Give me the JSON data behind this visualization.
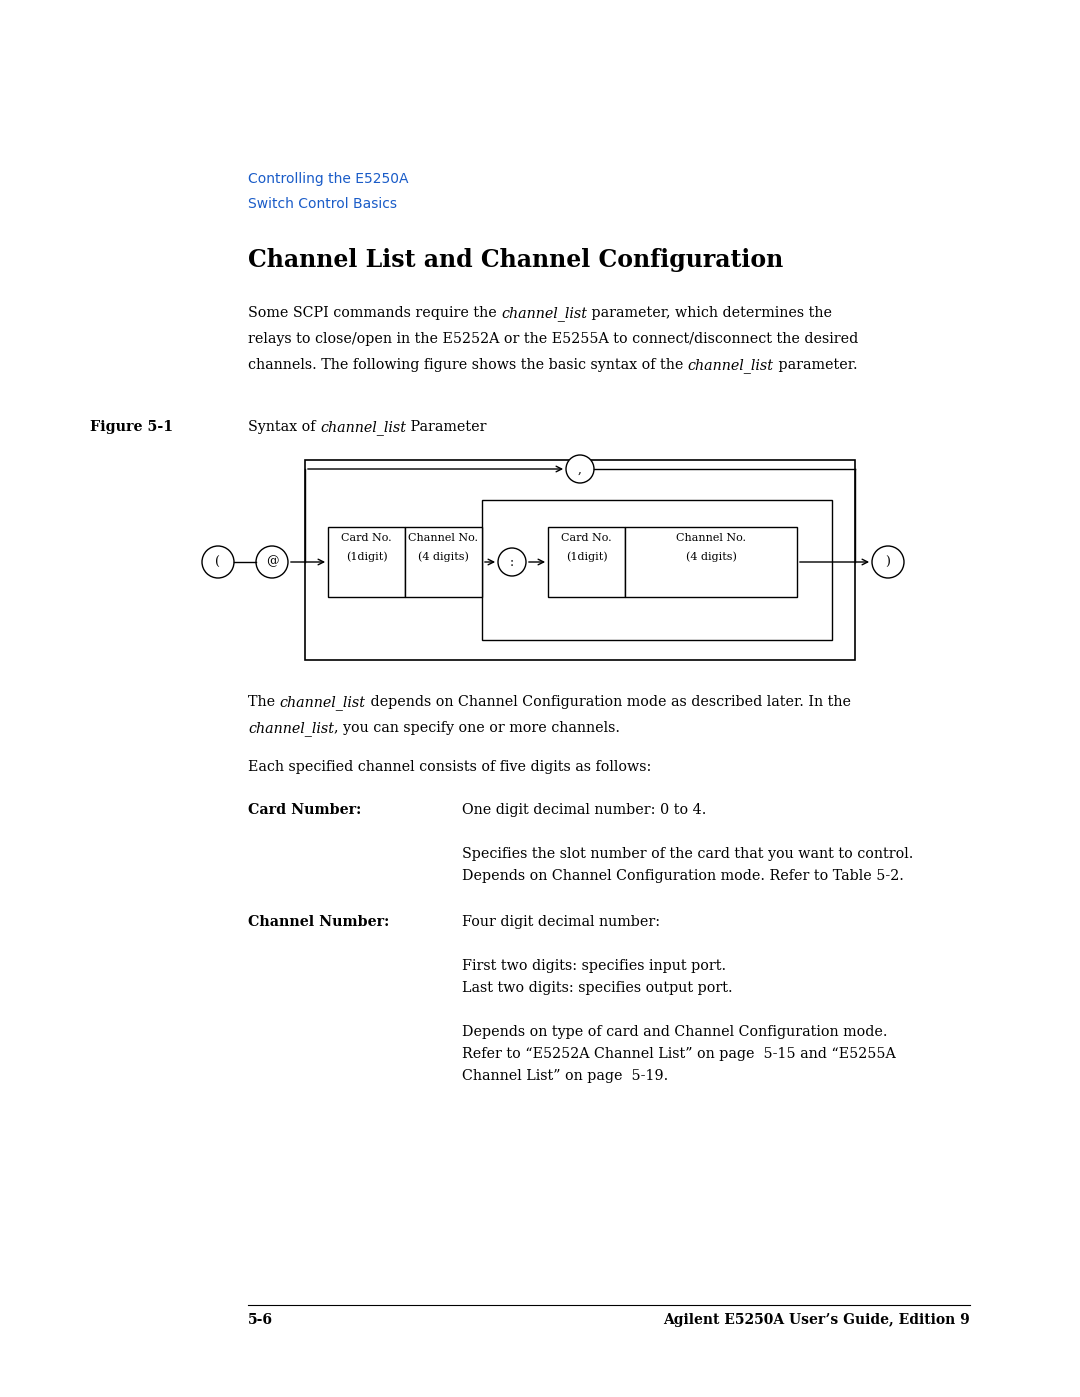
{
  "bg_color": "#ffffff",
  "page_width": 10.8,
  "page_height": 13.97,
  "breadcrumb_line1": "Controlling the E5250A",
  "breadcrumb_line2": "Switch Control Basics",
  "breadcrumb_color": "#1a5cc8",
  "main_title": "Channel List and Channel Configuration",
  "card_num_bold": "Card Number:",
  "card_num_text1": "One digit decimal number: 0 to 4.",
  "chan_num_bold": "Channel Number:",
  "chan_num_text1": "Four digit decimal number:",
  "chan_num_text2": "First two digits: specifies input port.",
  "chan_num_text3": "Last two digits: specifies output port.",
  "footer_left": "5-6",
  "footer_right": "Agilent E5250A User’s Guide, Edition 9"
}
